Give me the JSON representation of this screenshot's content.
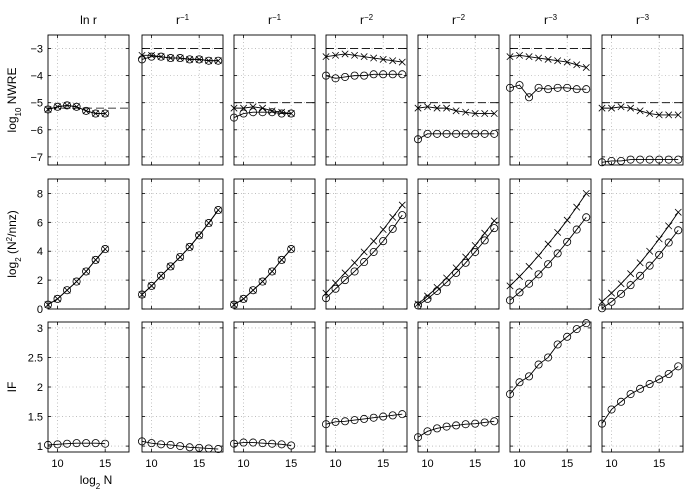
{
  "chart_data": {
    "type": "line",
    "column_titles": [
      {
        "base": "ln r",
        "sup": ""
      },
      {
        "base": "r",
        "sup": "−1"
      },
      {
        "base": "r",
        "sup": "−1"
      },
      {
        "base": "r",
        "sup": "−2"
      },
      {
        "base": "r",
        "sup": "−2"
      },
      {
        "base": "r",
        "sup": "−3"
      },
      {
        "base": "r",
        "sup": "−3"
      }
    ],
    "xlabel": {
      "pre": "log",
      "sub": "2",
      "post": " N"
    },
    "ylabels": [
      {
        "pre": "log",
        "sub": "10",
        "post": " NWRE",
        "sup": ""
      },
      {
        "pre": "log",
        "sub": "2",
        "post": " (N",
        "sup": "2",
        "tail": "/nnz)"
      },
      {
        "pre": "IF",
        "sub": "",
        "post": "",
        "sup": ""
      }
    ],
    "x_range": [
      9,
      17.5
    ],
    "x_ticks": [
      10,
      15
    ],
    "x_tick_labels": [
      "10",
      "15"
    ],
    "rows": [
      {
        "ylim": [
          -7.3,
          -2.5
        ],
        "yticks": [
          -7,
          -6,
          -5,
          -4,
          -3
        ],
        "ytick_labels": [
          "−7",
          "−6",
          "−5",
          "−4",
          "−3"
        ]
      },
      {
        "ylim": [
          0,
          9
        ],
        "yticks": [
          0,
          2,
          4,
          6,
          8
        ],
        "ytick_labels": [
          "0",
          "2",
          "4",
          "6",
          "8"
        ]
      },
      {
        "ylim": [
          0.9,
          3.1
        ],
        "yticks": [
          1,
          1.5,
          2,
          2.5,
          3
        ],
        "ytick_labels": [
          "1",
          "1.5",
          "2",
          "2.5",
          "3"
        ]
      }
    ],
    "panels": [
      {
        "row": 0,
        "col": 0,
        "x": [
          9,
          10,
          11,
          12,
          13,
          14,
          15
        ],
        "ref": -5.2,
        "series": [
          {
            "marker": "o",
            "values": [
              -5.25,
              -5.15,
              -5.1,
              -5.15,
              -5.3,
              -5.4,
              -5.4
            ]
          },
          {
            "marker": "x",
            "values": [
              -5.25,
              -5.15,
              -5.1,
              -5.15,
              -5.3,
              -5.4,
              -5.4
            ]
          }
        ]
      },
      {
        "row": 0,
        "col": 1,
        "x": [
          9,
          10,
          11,
          12,
          13,
          14,
          15,
          16,
          17
        ],
        "ref": -3.0,
        "series": [
          {
            "marker": "o",
            "values": [
              -3.4,
              -3.3,
              -3.3,
              -3.35,
              -3.35,
              -3.4,
              -3.4,
              -3.45,
              -3.45
            ]
          },
          {
            "marker": "x",
            "values": [
              -3.25,
              -3.25,
              -3.3,
              -3.35,
              -3.35,
              -3.4,
              -3.4,
              -3.45,
              -3.45
            ]
          }
        ]
      },
      {
        "row": 0,
        "col": 2,
        "x": [
          9,
          10,
          11,
          12,
          13,
          14,
          15
        ],
        "ref": -5.0,
        "series": [
          {
            "marker": "o",
            "values": [
              -5.55,
              -5.4,
              -5.35,
              -5.35,
              -5.35,
              -5.4,
              -5.4
            ]
          },
          {
            "marker": "x",
            "values": [
              -5.2,
              -5.2,
              -5.15,
              -5.2,
              -5.3,
              -5.35,
              -5.4
            ]
          }
        ]
      },
      {
        "row": 0,
        "col": 3,
        "x": [
          9,
          10,
          11,
          12,
          13,
          14,
          15,
          16,
          17
        ],
        "ref": -3.0,
        "series": [
          {
            "marker": "o",
            "values": [
              -4.0,
              -4.1,
              -4.05,
              -4.0,
              -4.0,
              -3.95,
              -3.95,
              -3.95,
              -3.95
            ]
          },
          {
            "marker": "x",
            "values": [
              -3.3,
              -3.25,
              -3.2,
              -3.25,
              -3.3,
              -3.35,
              -3.4,
              -3.45,
              -3.5
            ]
          }
        ]
      },
      {
        "row": 0,
        "col": 4,
        "x": [
          9,
          10,
          11,
          12,
          13,
          14,
          15,
          16,
          17
        ],
        "ref": -5.0,
        "series": [
          {
            "marker": "o",
            "values": [
              -6.35,
              -6.15,
              -6.15,
              -6.15,
              -6.15,
              -6.15,
              -6.15,
              -6.15,
              -6.15
            ]
          },
          {
            "marker": "x",
            "values": [
              -5.2,
              -5.15,
              -5.2,
              -5.2,
              -5.3,
              -5.35,
              -5.4,
              -5.4,
              -5.4
            ]
          }
        ]
      },
      {
        "row": 0,
        "col": 5,
        "x": [
          9,
          10,
          11,
          12,
          13,
          14,
          15,
          16,
          17
        ],
        "ref": -3.0,
        "series": [
          {
            "marker": "o",
            "values": [
              -4.45,
              -4.35,
              -4.8,
              -4.45,
              -4.5,
              -4.45,
              -4.45,
              -4.5,
              -4.5
            ]
          },
          {
            "marker": "x",
            "values": [
              -3.3,
              -3.25,
              -3.3,
              -3.35,
              -3.4,
              -3.45,
              -3.5,
              -3.6,
              -3.7
            ]
          }
        ]
      },
      {
        "row": 0,
        "col": 6,
        "x": [
          9,
          10,
          11,
          12,
          13,
          14,
          15,
          16,
          17
        ],
        "ref": -5.0,
        "series": [
          {
            "marker": "o",
            "values": [
              -7.2,
              -7.15,
              -7.15,
              -7.1,
              -7.1,
              -7.1,
              -7.1,
              -7.1,
              -7.1
            ]
          },
          {
            "marker": "x",
            "values": [
              -5.2,
              -5.2,
              -5.15,
              -5.2,
              -5.3,
              -5.4,
              -5.45,
              -5.45,
              -5.45
            ]
          }
        ]
      },
      {
        "row": 1,
        "col": 0,
        "x": [
          9,
          10,
          11,
          12,
          13,
          14,
          15
        ],
        "series": [
          {
            "marker": "o",
            "values": [
              0.3,
              0.7,
              1.3,
              1.9,
              2.6,
              3.4,
              4.15
            ]
          },
          {
            "marker": "x",
            "values": [
              0.3,
              0.7,
              1.3,
              1.9,
              2.6,
              3.4,
              4.15
            ]
          }
        ]
      },
      {
        "row": 1,
        "col": 1,
        "x": [
          9,
          10,
          11,
          12,
          13,
          14,
          15,
          16,
          17
        ],
        "series": [
          {
            "marker": "o",
            "values": [
              1.0,
              1.6,
              2.3,
              2.95,
              3.6,
              4.3,
              5.1,
              5.95,
              6.85
            ]
          },
          {
            "marker": "x",
            "values": [
              1.0,
              1.6,
              2.3,
              2.95,
              3.6,
              4.3,
              5.1,
              5.95,
              6.85
            ]
          }
        ]
      },
      {
        "row": 1,
        "col": 2,
        "x": [
          9,
          10,
          11,
          12,
          13,
          14,
          15
        ],
        "series": [
          {
            "marker": "o",
            "values": [
              0.3,
              0.7,
              1.3,
              1.9,
              2.6,
              3.4,
              4.15
            ]
          },
          {
            "marker": "x",
            "values": [
              0.3,
              0.7,
              1.3,
              1.9,
              2.6,
              3.4,
              4.15
            ]
          }
        ]
      },
      {
        "row": 1,
        "col": 3,
        "x": [
          9,
          10,
          11,
          12,
          13,
          14,
          15,
          16,
          17
        ],
        "series": [
          {
            "marker": "o",
            "values": [
              0.75,
              1.4,
              2.0,
              2.6,
              3.25,
              3.95,
              4.7,
              5.55,
              6.5
            ]
          },
          {
            "marker": "x",
            "values": [
              1.1,
              1.8,
              2.5,
              3.2,
              3.95,
              4.7,
              5.5,
              6.35,
              7.2
            ]
          }
        ]
      },
      {
        "row": 1,
        "col": 4,
        "x": [
          9,
          10,
          11,
          12,
          13,
          14,
          15,
          16,
          17
        ],
        "series": [
          {
            "marker": "o",
            "values": [
              0.25,
              0.7,
              1.25,
              1.85,
              2.5,
              3.2,
              3.95,
              4.75,
              5.6
            ]
          },
          {
            "marker": "x",
            "values": [
              0.35,
              0.9,
              1.5,
              2.15,
              2.85,
              3.6,
              4.4,
              5.25,
              6.1
            ]
          }
        ]
      },
      {
        "row": 1,
        "col": 5,
        "x": [
          9,
          10,
          11,
          12,
          13,
          14,
          15,
          16,
          17
        ],
        "series": [
          {
            "marker": "o",
            "values": [
              0.6,
              1.15,
              1.75,
              2.4,
              3.1,
              3.85,
              4.65,
              5.5,
              6.35
            ]
          },
          {
            "marker": "x",
            "values": [
              1.6,
              2.25,
              2.95,
              3.7,
              4.5,
              5.3,
              6.15,
              7.05,
              8.0
            ]
          }
        ]
      },
      {
        "row": 1,
        "col": 6,
        "x": [
          9,
          10,
          11,
          12,
          13,
          14,
          15,
          16,
          17
        ],
        "series": [
          {
            "marker": "o",
            "values": [
              0.05,
              0.5,
              1.05,
              1.65,
              2.3,
              3.0,
              3.75,
              4.6,
              5.45
            ]
          },
          {
            "marker": "x",
            "values": [
              0.5,
              1.1,
              1.75,
              2.45,
              3.2,
              4.0,
              4.85,
              5.75,
              6.7
            ]
          }
        ]
      },
      {
        "row": 2,
        "col": 0,
        "x": [
          9,
          10,
          11,
          12,
          13,
          14,
          15
        ],
        "series": [
          {
            "marker": "o",
            "values": [
              1.02,
              1.03,
              1.04,
              1.05,
              1.05,
              1.05,
              1.04
            ]
          }
        ]
      },
      {
        "row": 2,
        "col": 1,
        "x": [
          9,
          10,
          11,
          12,
          13,
          14,
          15,
          16,
          17
        ],
        "series": [
          {
            "marker": "o",
            "values": [
              1.08,
              1.05,
              1.03,
              1.02,
              1.0,
              0.98,
              0.97,
              0.96,
              0.95
            ]
          }
        ]
      },
      {
        "row": 2,
        "col": 2,
        "x": [
          9,
          10,
          11,
          12,
          13,
          14,
          15
        ],
        "series": [
          {
            "marker": "o",
            "values": [
              1.04,
              1.06,
              1.06,
              1.05,
              1.04,
              1.03,
              1.01
            ]
          }
        ]
      },
      {
        "row": 2,
        "col": 3,
        "x": [
          9,
          10,
          11,
          12,
          13,
          14,
          15,
          16,
          17
        ],
        "series": [
          {
            "marker": "o",
            "values": [
              1.37,
              1.41,
              1.42,
              1.44,
              1.46,
              1.48,
              1.5,
              1.52,
              1.54
            ]
          }
        ]
      },
      {
        "row": 2,
        "col": 4,
        "x": [
          9,
          10,
          11,
          12,
          13,
          14,
          15,
          16,
          17
        ],
        "series": [
          {
            "marker": "o",
            "values": [
              1.15,
              1.25,
              1.3,
              1.33,
              1.35,
              1.37,
              1.38,
              1.4,
              1.42
            ]
          }
        ]
      },
      {
        "row": 2,
        "col": 5,
        "x": [
          9,
          10,
          11,
          12,
          13,
          14,
          15,
          16,
          17
        ],
        "series": [
          {
            "marker": "o",
            "values": [
              1.88,
              2.08,
              2.18,
              2.38,
              2.5,
              2.72,
              2.85,
              2.98,
              3.08
            ]
          }
        ]
      },
      {
        "row": 2,
        "col": 6,
        "x": [
          9,
          10,
          11,
          12,
          13,
          14,
          15,
          16,
          17
        ],
        "series": [
          {
            "marker": "o",
            "values": [
              1.38,
              1.62,
              1.75,
              1.88,
              1.97,
              2.05,
              2.13,
              2.22,
              2.35
            ]
          }
        ]
      }
    ]
  }
}
